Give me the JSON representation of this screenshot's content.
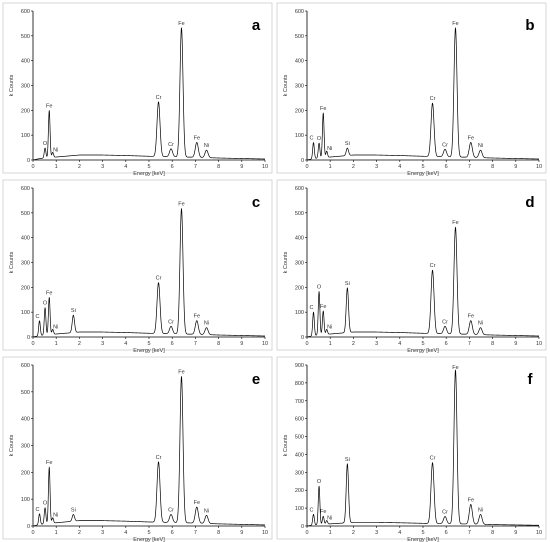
{
  "chart_data": [
    {
      "type": "line",
      "panel_label": "a",
      "xlabel": "Energy [keV]",
      "ylabel": "k Counts",
      "xlim": [
        0,
        10
      ],
      "ylim": [
        0,
        600
      ],
      "x_ticks": [
        0,
        1,
        2,
        3,
        4,
        5,
        6,
        7,
        8,
        9,
        10
      ],
      "y_ticks": [
        0,
        100,
        200,
        300,
        400,
        500,
        600
      ],
      "background": [
        [
          0.0,
          0
        ],
        [
          0.25,
          5
        ],
        [
          0.5,
          8
        ],
        [
          1.0,
          12
        ],
        [
          1.5,
          16
        ],
        [
          2.0,
          20
        ],
        [
          3.0,
          20
        ],
        [
          4.0,
          18
        ],
        [
          5.0,
          15
        ],
        [
          6.0,
          13
        ],
        [
          7.0,
          11
        ],
        [
          8.0,
          8
        ],
        [
          9.0,
          6
        ],
        [
          10.0,
          4
        ]
      ],
      "peaks": [
        {
          "element": "O",
          "energy": 0.52,
          "height": 40,
          "label": "O"
        },
        {
          "element": "Fe",
          "energy": 0.7,
          "height": 190,
          "label": "Fe"
        },
        {
          "element": "Ni",
          "energy": 0.85,
          "height": 20,
          "label": "Ni"
        },
        {
          "element": "Cr",
          "energy": 5.41,
          "height": 220,
          "label": "Cr"
        },
        {
          "element": "Cr",
          "energy": 5.95,
          "height": 32,
          "label": "Cr"
        },
        {
          "element": "Fe",
          "energy": 6.4,
          "height": 520,
          "label": "Fe"
        },
        {
          "element": "Fe",
          "energy": 7.06,
          "height": 60,
          "label": "Fe"
        },
        {
          "element": "Ni",
          "energy": 7.48,
          "height": 30,
          "label": "Ni"
        }
      ]
    },
    {
      "type": "line",
      "panel_label": "b",
      "xlabel": "Energy [keV]",
      "ylabel": "k Counts",
      "xlim": [
        0,
        10
      ],
      "ylim": [
        0,
        600
      ],
      "x_ticks": [
        0,
        1,
        2,
        3,
        4,
        5,
        6,
        7,
        8,
        9,
        10
      ],
      "y_ticks": [
        0,
        100,
        200,
        300,
        400,
        500,
        600
      ],
      "background": [
        [
          0.0,
          0
        ],
        [
          0.25,
          5
        ],
        [
          0.5,
          8
        ],
        [
          1.0,
          12
        ],
        [
          1.5,
          16
        ],
        [
          2.0,
          20
        ],
        [
          3.0,
          20
        ],
        [
          4.0,
          18
        ],
        [
          5.0,
          15
        ],
        [
          6.0,
          13
        ],
        [
          7.0,
          11
        ],
        [
          8.0,
          8
        ],
        [
          9.0,
          6
        ],
        [
          10.0,
          4
        ]
      ],
      "peaks": [
        {
          "element": "C",
          "energy": 0.28,
          "height": 65,
          "label": "C"
        },
        {
          "element": "O",
          "energy": 0.52,
          "height": 60,
          "label": "O"
        },
        {
          "element": "Fe",
          "energy": 0.7,
          "height": 180,
          "label": "Fe"
        },
        {
          "element": "Ni",
          "energy": 0.85,
          "height": 25,
          "label": "Ni"
        },
        {
          "element": "Si",
          "energy": 1.74,
          "height": 30,
          "label": "Si"
        },
        {
          "element": "Cr",
          "energy": 5.41,
          "height": 215,
          "label": "Cr"
        },
        {
          "element": "Cr",
          "energy": 5.95,
          "height": 30,
          "label": "Cr"
        },
        {
          "element": "Fe",
          "energy": 6.4,
          "height": 520,
          "label": "Fe"
        },
        {
          "element": "Fe",
          "energy": 7.06,
          "height": 60,
          "label": "Fe"
        },
        {
          "element": "Ni",
          "energy": 7.48,
          "height": 30,
          "label": "Ni"
        }
      ]
    },
    {
      "type": "line",
      "panel_label": "c",
      "xlabel": "Energy [keV]",
      "ylabel": "k Counts",
      "xlim": [
        0,
        10
      ],
      "ylim": [
        0,
        600
      ],
      "x_ticks": [
        0,
        1,
        2,
        3,
        4,
        5,
        6,
        7,
        8,
        9,
        10
      ],
      "y_ticks": [
        0,
        100,
        200,
        300,
        400,
        500,
        600
      ],
      "background": [
        [
          0.0,
          0
        ],
        [
          0.25,
          5
        ],
        [
          0.5,
          8
        ],
        [
          1.0,
          12
        ],
        [
          1.5,
          16
        ],
        [
          2.0,
          20
        ],
        [
          3.0,
          20
        ],
        [
          4.0,
          18
        ],
        [
          5.0,
          15
        ],
        [
          6.0,
          13
        ],
        [
          7.0,
          11
        ],
        [
          8.0,
          8
        ],
        [
          9.0,
          6
        ],
        [
          10.0,
          4
        ]
      ],
      "peaks": [
        {
          "element": "C",
          "energy": 0.28,
          "height": 60,
          "label": "C"
        },
        {
          "element": "O",
          "energy": 0.52,
          "height": 110,
          "label": "O"
        },
        {
          "element": "Fe",
          "energy": 0.7,
          "height": 150,
          "label": "Fe"
        },
        {
          "element": "Ni",
          "energy": 0.85,
          "height": 20,
          "label": "Ni"
        },
        {
          "element": "Si",
          "energy": 1.74,
          "height": 70,
          "label": "Si"
        },
        {
          "element": "Cr",
          "energy": 5.41,
          "height": 205,
          "label": "Cr"
        },
        {
          "element": "Cr",
          "energy": 5.95,
          "height": 30,
          "label": "Cr"
        },
        {
          "element": "Fe",
          "energy": 6.4,
          "height": 505,
          "label": "Fe"
        },
        {
          "element": "Fe",
          "energy": 7.06,
          "height": 55,
          "label": "Fe"
        },
        {
          "element": "Ni",
          "energy": 7.48,
          "height": 28,
          "label": "Ni"
        }
      ]
    },
    {
      "type": "line",
      "panel_label": "d",
      "xlabel": "Energy [keV]",
      "ylabel": "k Counts",
      "xlim": [
        0,
        10
      ],
      "ylim": [
        0,
        600
      ],
      "x_ticks": [
        0,
        1,
        2,
        3,
        4,
        5,
        6,
        7,
        8,
        9,
        10
      ],
      "y_ticks": [
        0,
        100,
        200,
        300,
        400,
        500,
        600
      ],
      "background": [
        [
          0.0,
          0
        ],
        [
          0.25,
          5
        ],
        [
          0.5,
          8
        ],
        [
          1.0,
          12
        ],
        [
          1.5,
          16
        ],
        [
          2.0,
          20
        ],
        [
          3.0,
          20
        ],
        [
          4.0,
          18
        ],
        [
          5.0,
          15
        ],
        [
          6.0,
          13
        ],
        [
          7.0,
          11
        ],
        [
          8.0,
          8
        ],
        [
          9.0,
          6
        ],
        [
          10.0,
          4
        ]
      ],
      "peaks": [
        {
          "element": "C",
          "energy": 0.28,
          "height": 95,
          "label": "C"
        },
        {
          "element": "O",
          "energy": 0.52,
          "height": 175,
          "label": "O"
        },
        {
          "element": "Fe",
          "energy": 0.7,
          "height": 95,
          "label": "Fe"
        },
        {
          "element": "Ni",
          "energy": 0.85,
          "height": 20,
          "label": "Ni"
        },
        {
          "element": "Si",
          "energy": 1.74,
          "height": 180,
          "label": "Si"
        },
        {
          "element": "Cr",
          "energy": 5.41,
          "height": 255,
          "label": "Cr"
        },
        {
          "element": "Cr",
          "energy": 5.95,
          "height": 30,
          "label": "Cr"
        },
        {
          "element": "Fe",
          "energy": 6.4,
          "height": 430,
          "label": "Fe"
        },
        {
          "element": "Fe",
          "energy": 7.06,
          "height": 55,
          "label": "Fe"
        },
        {
          "element": "Ni",
          "energy": 7.48,
          "height": 28,
          "label": "Ni"
        }
      ]
    },
    {
      "type": "line",
      "panel_label": "e",
      "xlabel": "Energy [keV]",
      "ylabel": "k Counts",
      "xlim": [
        0,
        10
      ],
      "ylim": [
        0,
        600
      ],
      "x_ticks": [
        0,
        1,
        2,
        3,
        4,
        5,
        6,
        7,
        8,
        9,
        10
      ],
      "y_ticks": [
        0,
        100,
        200,
        300,
        400,
        500,
        600
      ],
      "background": [
        [
          0.0,
          0
        ],
        [
          0.25,
          5
        ],
        [
          0.5,
          8
        ],
        [
          1.0,
          12
        ],
        [
          1.5,
          16
        ],
        [
          2.0,
          20
        ],
        [
          3.0,
          20
        ],
        [
          4.0,
          18
        ],
        [
          5.0,
          15
        ],
        [
          6.0,
          13
        ],
        [
          7.0,
          11
        ],
        [
          8.0,
          8
        ],
        [
          9.0,
          6
        ],
        [
          10.0,
          4
        ]
      ],
      "peaks": [
        {
          "element": "C",
          "energy": 0.28,
          "height": 40,
          "label": "C"
        },
        {
          "element": "O",
          "energy": 0.52,
          "height": 60,
          "label": "O"
        },
        {
          "element": "Fe",
          "energy": 0.7,
          "height": 210,
          "label": "Fe"
        },
        {
          "element": "Ni",
          "energy": 0.85,
          "height": 20,
          "label": "Ni"
        },
        {
          "element": "Si",
          "energy": 1.74,
          "height": 25,
          "label": "Si"
        },
        {
          "element": "Cr",
          "energy": 5.41,
          "height": 225,
          "label": "Cr"
        },
        {
          "element": "Cr",
          "energy": 5.95,
          "height": 30,
          "label": "Cr"
        },
        {
          "element": "Fe",
          "energy": 6.4,
          "height": 545,
          "label": "Fe"
        },
        {
          "element": "Fe",
          "energy": 7.06,
          "height": 60,
          "label": "Fe"
        },
        {
          "element": "Ni",
          "energy": 7.48,
          "height": 30,
          "label": "Ni"
        }
      ]
    },
    {
      "type": "line",
      "panel_label": "f",
      "xlabel": "Energy [keV]",
      "ylabel": "k Counts",
      "xlim": [
        0,
        10
      ],
      "ylim": [
        0,
        900
      ],
      "x_ticks": [
        0,
        1,
        2,
        3,
        4,
        5,
        6,
        7,
        8,
        9,
        10
      ],
      "y_ticks": [
        0,
        100,
        200,
        300,
        400,
        500,
        600,
        700,
        800,
        900
      ],
      "background": [
        [
          0.0,
          0
        ],
        [
          0.25,
          5
        ],
        [
          0.5,
          8
        ],
        [
          1.0,
          12
        ],
        [
          1.5,
          16
        ],
        [
          2.0,
          20
        ],
        [
          3.0,
          20
        ],
        [
          4.0,
          18
        ],
        [
          5.0,
          15
        ],
        [
          6.0,
          13
        ],
        [
          7.0,
          11
        ],
        [
          8.0,
          8
        ],
        [
          9.0,
          6
        ],
        [
          10.0,
          4
        ]
      ],
      "peaks": [
        {
          "element": "C",
          "energy": 0.28,
          "height": 60,
          "label": "C"
        },
        {
          "element": "O",
          "energy": 0.52,
          "height": 215,
          "label": "O"
        },
        {
          "element": "Fe",
          "energy": 0.7,
          "height": 45,
          "label": "Fe"
        },
        {
          "element": "Ni",
          "energy": 0.85,
          "height": 20,
          "label": "Ni"
        },
        {
          "element": "Si",
          "energy": 1.74,
          "height": 330,
          "label": "Si"
        },
        {
          "element": "Cr",
          "energy": 5.41,
          "height": 340,
          "label": "Cr"
        },
        {
          "element": "Cr",
          "energy": 5.95,
          "height": 40,
          "label": "Cr"
        },
        {
          "element": "Fe",
          "energy": 6.4,
          "height": 860,
          "label": "Fe"
        },
        {
          "element": "Fe",
          "energy": 7.06,
          "height": 110,
          "label": "Fe"
        },
        {
          "element": "Ni",
          "energy": 7.48,
          "height": 55,
          "label": "Ni"
        }
      ]
    }
  ]
}
